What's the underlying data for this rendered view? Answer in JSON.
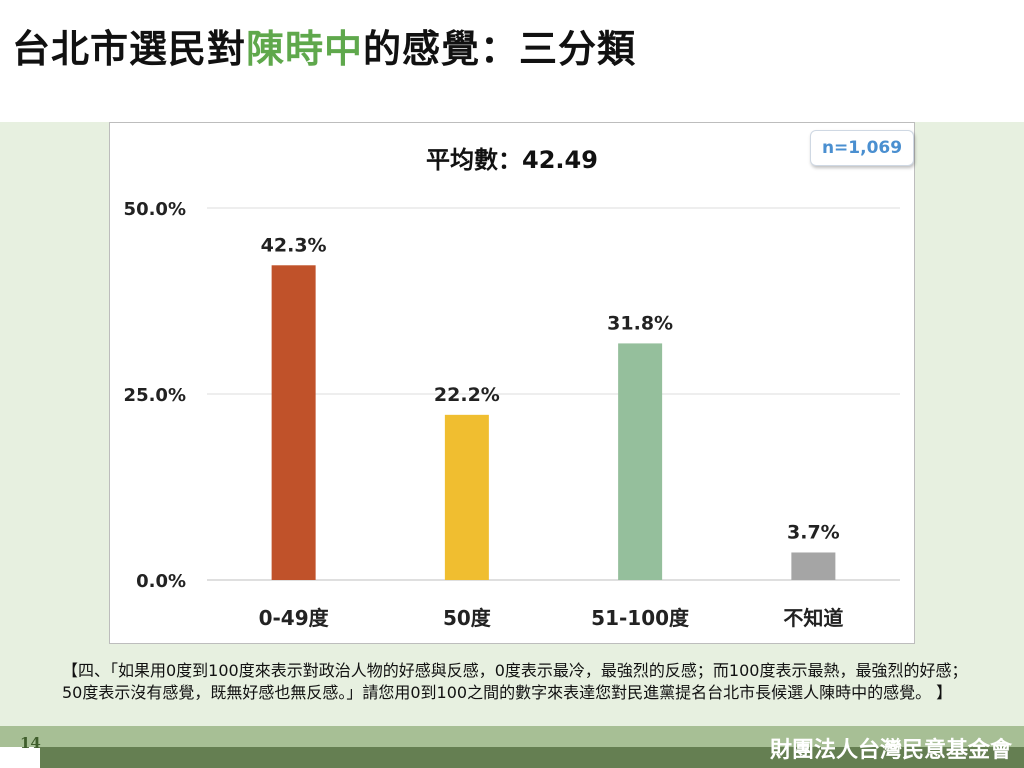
{
  "slide": {
    "title_prefix": "台北市選民對",
    "title_highlight": "陳時中",
    "title_suffix": "的感覺：三分類",
    "accent_color": "#5fa84c",
    "page_number": "14",
    "footer_org": "財團法人台灣民意基金會",
    "question_text": "【四、「如果用0度到100度來表示對政治人物的好感與反感，0度表示最冷，最強烈的反感；而100度表示最熱，最強烈的好感；50度表示沒有感覺，既無好感也無反感。」請您用0到100之間的數字來表達您對民進黨提名台北市長候選人陳時中的感覺。 】"
  },
  "chart_data": {
    "type": "bar",
    "title": "平均數：42.49",
    "sample_size": "n=1,069",
    "categories": [
      "0-49度",
      "50度",
      "51-100度",
      "不知道"
    ],
    "values": [
      42.3,
      22.2,
      31.8,
      3.7
    ],
    "value_labels": [
      "42.3%",
      "22.2%",
      "31.8%",
      "3.7%"
    ],
    "colors": [
      "#c0522a",
      "#f0be30",
      "#95bf9c",
      "#a5a5a5"
    ],
    "yticks": [
      0,
      25,
      50
    ],
    "ytick_labels": [
      "0.0%",
      "25.0%",
      "50.0%"
    ],
    "ylim": [
      0,
      50
    ],
    "grid": true,
    "legend": "none"
  }
}
